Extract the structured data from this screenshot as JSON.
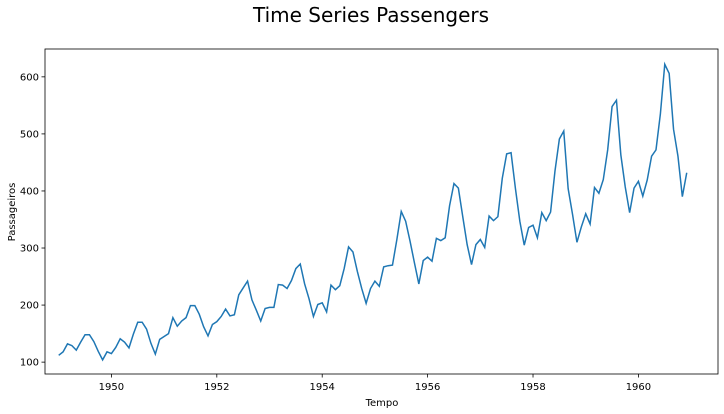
{
  "chart_data": {
    "type": "line",
    "title": "Time Series Passengers",
    "xlabel": "Tempo",
    "ylabel": "Passageiros",
    "xlim": [
      1948.74,
      1961.51
    ],
    "ylim": [
      79.2,
      648.8
    ],
    "x_ticks": [
      1950,
      1952,
      1954,
      1956,
      1958,
      1960
    ],
    "x_tick_labels": [
      "1950",
      "1952",
      "1954",
      "1956",
      "1958",
      "1960"
    ],
    "y_ticks": [
      100,
      200,
      300,
      400,
      500,
      600
    ],
    "y_tick_labels": [
      "100",
      "200",
      "300",
      "400",
      "500",
      "600"
    ],
    "grid": false,
    "line_color": "#1f77b4",
    "series": [
      {
        "x_start": 1949.0,
        "x_step_months": 1,
        "values": [
          112,
          118,
          132,
          129,
          121,
          135,
          148,
          148,
          136,
          119,
          104,
          118,
          115,
          126,
          141,
          135,
          125,
          149,
          170,
          170,
          158,
          133,
          114,
          140,
          145,
          150,
          178,
          163,
          172,
          178,
          199,
          199,
          184,
          162,
          146,
          166,
          171,
          180,
          193,
          181,
          183,
          218,
          230,
          242,
          209,
          191,
          172,
          194,
          196,
          196,
          236,
          235,
          229,
          243,
          264,
          272,
          237,
          211,
          180,
          201,
          204,
          188,
          235,
          227,
          234,
          264,
          302,
          293,
          259,
          229,
          203,
          229,
          242,
          233,
          267,
          269,
          270,
          315,
          364,
          347,
          312,
          274,
          237,
          278,
          284,
          277,
          317,
          313,
          318,
          374,
          413,
          405,
          355,
          306,
          271,
          306,
          315,
          301,
          356,
          348,
          355,
          422,
          465,
          467,
          404,
          347,
          305,
          336,
          340,
          318,
          362,
          348,
          363,
          435,
          491,
          505,
          404,
          359,
          310,
          337,
          360,
          342,
          406,
          396,
          420,
          472,
          548,
          559,
          463,
          407,
          362,
          405,
          417,
          391,
          419,
          461,
          472,
          535,
          622,
          606,
          508,
          461,
          390,
          432
        ]
      }
    ]
  }
}
